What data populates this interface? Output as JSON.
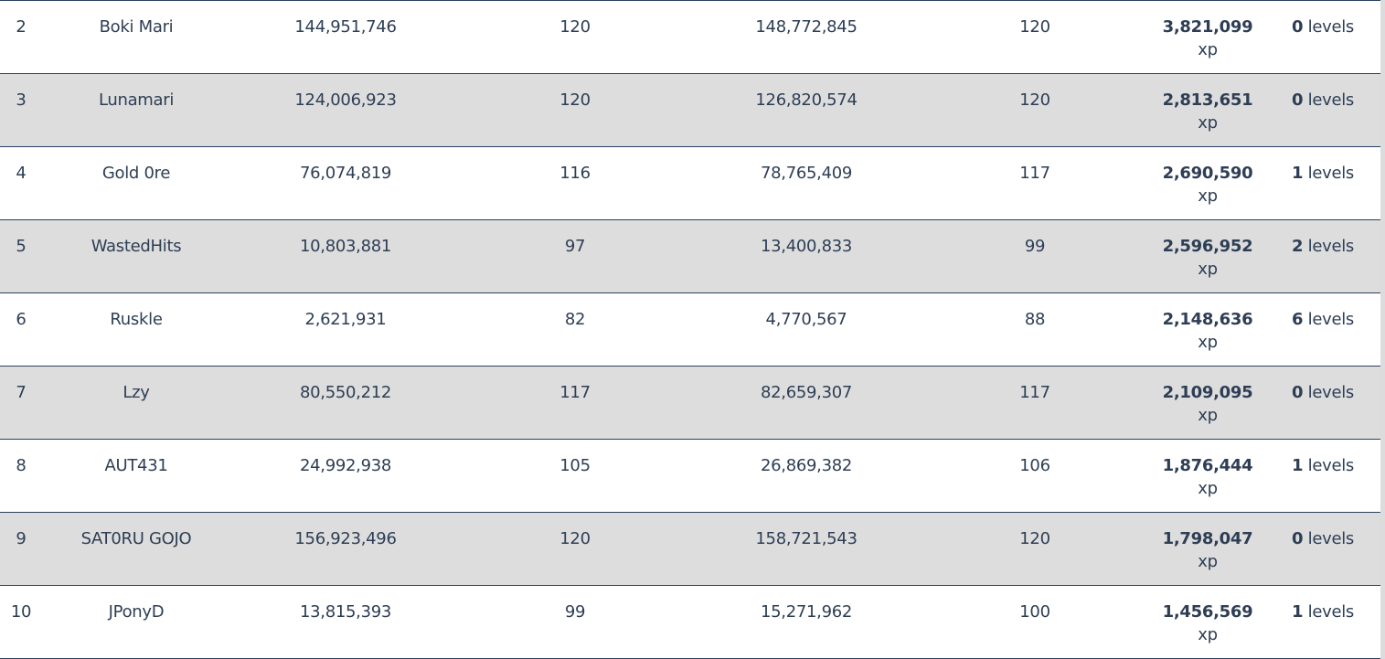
{
  "rows": [
    {
      "rank": "2",
      "name": "Boki Mari",
      "xp_start": "144,951,746",
      "level_start": "120",
      "xp_end": "148,772,845",
      "level_end": "120",
      "gain": "3,821,099",
      "gain_unit": "xp",
      "levels": "0",
      "levels_unit": "levels"
    },
    {
      "rank": "3",
      "name": "Lunamari",
      "xp_start": "124,006,923",
      "level_start": "120",
      "xp_end": "126,820,574",
      "level_end": "120",
      "gain": "2,813,651",
      "gain_unit": "xp",
      "levels": "0",
      "levels_unit": "levels"
    },
    {
      "rank": "4",
      "name": "Gold 0re",
      "xp_start": "76,074,819",
      "level_start": "116",
      "xp_end": "78,765,409",
      "level_end": "117",
      "gain": "2,690,590",
      "gain_unit": "xp",
      "levels": "1",
      "levels_unit": "levels"
    },
    {
      "rank": "5",
      "name": "WastedHits",
      "xp_start": "10,803,881",
      "level_start": "97",
      "xp_end": "13,400,833",
      "level_end": "99",
      "gain": "2,596,952",
      "gain_unit": "xp",
      "levels": "2",
      "levels_unit": "levels"
    },
    {
      "rank": "6",
      "name": "Ruskle",
      "xp_start": "2,621,931",
      "level_start": "82",
      "xp_end": "4,770,567",
      "level_end": "88",
      "gain": "2,148,636",
      "gain_unit": "xp",
      "levels": "6",
      "levels_unit": "levels"
    },
    {
      "rank": "7",
      "name": "Lzy",
      "xp_start": "80,550,212",
      "level_start": "117",
      "xp_end": "82,659,307",
      "level_end": "117",
      "gain": "2,109,095",
      "gain_unit": "xp",
      "levels": "0",
      "levels_unit": "levels"
    },
    {
      "rank": "8",
      "name": "AUT431",
      "xp_start": "24,992,938",
      "level_start": "105",
      "xp_end": "26,869,382",
      "level_end": "106",
      "gain": "1,876,444",
      "gain_unit": "xp",
      "levels": "1",
      "levels_unit": "levels"
    },
    {
      "rank": "9",
      "name": "SAT0RU GOJO",
      "xp_start": "156,923,496",
      "level_start": "120",
      "xp_end": "158,721,543",
      "level_end": "120",
      "gain": "1,798,047",
      "gain_unit": "xp",
      "levels": "0",
      "levels_unit": "levels"
    },
    {
      "rank": "10",
      "name": "JPonyD",
      "xp_start": "13,815,393",
      "level_start": "99",
      "xp_end": "15,271,962",
      "level_end": "100",
      "gain": "1,456,569",
      "gain_unit": "xp",
      "levels": "1",
      "levels_unit": "levels"
    }
  ]
}
